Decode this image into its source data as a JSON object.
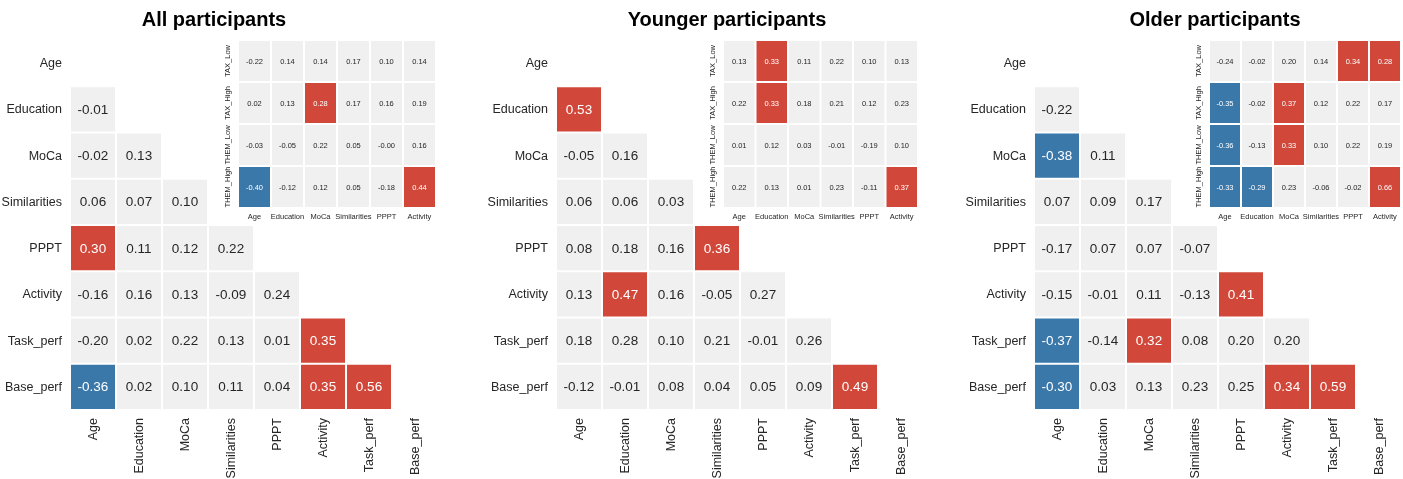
{
  "chart_data": [
    {
      "type": "heatmap",
      "title": "All participants",
      "categories": [
        "Age",
        "Education",
        "MoCa",
        "Similarities",
        "PPPT",
        "Activity",
        "Task_perf",
        "Base_perf"
      ],
      "y_categories": [
        "Age",
        "Education",
        "MoCa",
        "Similarities",
        "PPPT",
        "Activity",
        "Task_perf",
        "Base_perf"
      ],
      "cells": [
        [
          null,
          null,
          null,
          null,
          null,
          null,
          null,
          null
        ],
        [
          -0.01,
          null,
          null,
          null,
          null,
          null,
          null,
          null
        ],
        [
          -0.02,
          0.13,
          null,
          null,
          null,
          null,
          null,
          null
        ],
        [
          0.06,
          0.07,
          0.1,
          null,
          null,
          null,
          null,
          null
        ],
        [
          0.3,
          0.11,
          0.12,
          0.22,
          null,
          null,
          null,
          null
        ],
        [
          -0.16,
          0.16,
          0.13,
          -0.09,
          0.24,
          null,
          null,
          null
        ],
        [
          -0.2,
          0.02,
          0.22,
          0.13,
          0.01,
          0.35,
          null,
          null
        ],
        [
          -0.36,
          0.02,
          0.1,
          0.11,
          0.04,
          0.35,
          0.56,
          null
        ]
      ],
      "cell_labels": [
        [
          null,
          null,
          null,
          null,
          null,
          null,
          null,
          null
        ],
        [
          "-0.01",
          null,
          null,
          null,
          null,
          null,
          null,
          null
        ],
        [
          "-0.02",
          "0.13",
          null,
          null,
          null,
          null,
          null,
          null
        ],
        [
          "0.06",
          "0.07",
          "0.10",
          null,
          null,
          null,
          null,
          null
        ],
        [
          "0.30",
          "0.11",
          "0.12",
          "0.22",
          null,
          null,
          null,
          null
        ],
        [
          "-0.16",
          "0.16",
          "0.13",
          "-0.09",
          "0.24",
          null,
          null,
          null
        ],
        [
          "-0.20",
          "0.02",
          "0.22",
          "0.13",
          "0.01",
          "0.35",
          null,
          null
        ],
        [
          "-0.36",
          "0.02",
          "0.10",
          "0.11",
          "0.04",
          "0.35",
          "0.56",
          null
        ]
      ],
      "colors": [
        [
          null,
          null,
          null,
          null,
          null,
          null,
          null,
          null
        ],
        [
          "#f0f0f0",
          null,
          null,
          null,
          null,
          null,
          null,
          null
        ],
        [
          "#f0f0f0",
          "#f0f0f0",
          null,
          null,
          null,
          null,
          null,
          null
        ],
        [
          "#f0f0f0",
          "#f0f0f0",
          "#f0f0f0",
          null,
          null,
          null,
          null,
          null
        ],
        [
          "#d1483a",
          "#f0f0f0",
          "#f0f0f0",
          "#f0f0f0",
          null,
          null,
          null,
          null
        ],
        [
          "#f0f0f0",
          "#f0f0f0",
          "#f0f0f0",
          "#f0f0f0",
          "#f0f0f0",
          null,
          null,
          null
        ],
        [
          "#f0f0f0",
          "#f0f0f0",
          "#f0f0f0",
          "#f0f0f0",
          "#f0f0f0",
          "#d1483a",
          null,
          null
        ],
        [
          "#3a78aa",
          "#f0f0f0",
          "#f0f0f0",
          "#f0f0f0",
          "#f0f0f0",
          "#d1483a",
          "#d1483a",
          null
        ]
      ],
      "data_labels": true
    },
    {
      "type": "heatmap",
      "categories": [
        "Age",
        "Education",
        "MoCa",
        "Similarities",
        "PPPT",
        "Activity"
      ],
      "y_categories": [
        "TAX_Low",
        "TAX_High",
        "THEM_Low",
        "THEM_High"
      ],
      "cells": [
        [
          -0.22,
          0.14,
          0.14,
          0.17,
          0.1,
          0.14
        ],
        [
          0.02,
          0.13,
          0.28,
          0.17,
          0.16,
          0.19
        ],
        [
          -0.03,
          -0.05,
          0.22,
          0.05,
          0.0,
          0.16
        ],
        [
          -0.4,
          -0.12,
          0.12,
          0.05,
          -0.18,
          0.44
        ]
      ],
      "cell_labels": [
        [
          "-0.22",
          "0.14",
          "0.14",
          "0.17",
          "0.10",
          "0.14"
        ],
        [
          "0.02",
          "0.13",
          "0.28",
          "0.17",
          "0.16",
          "0.19"
        ],
        [
          "-0.03",
          "-0.05",
          "0.22",
          "0.05",
          "-0.00",
          "0.16"
        ],
        [
          "-0.40",
          "-0.12",
          "0.12",
          "0.05",
          "-0.18",
          "0.44"
        ]
      ],
      "colors": [
        [
          "#f0f0f0",
          "#f0f0f0",
          "#f0f0f0",
          "#f0f0f0",
          "#f0f0f0",
          "#f0f0f0"
        ],
        [
          "#f0f0f0",
          "#f0f0f0",
          "#d1483a",
          "#f0f0f0",
          "#f0f0f0",
          "#f0f0f0"
        ],
        [
          "#f0f0f0",
          "#f0f0f0",
          "#f0f0f0",
          "#f0f0f0",
          "#f0f0f0",
          "#f0f0f0"
        ],
        [
          "#3a78aa",
          "#f0f0f0",
          "#f0f0f0",
          "#f0f0f0",
          "#f0f0f0",
          "#d1483a"
        ]
      ],
      "data_labels": true
    },
    {
      "type": "heatmap",
      "title": "Younger participants",
      "categories": [
        "Age",
        "Education",
        "MoCa",
        "Similarities",
        "PPPT",
        "Activity",
        "Task_perf",
        "Base_perf"
      ],
      "y_categories": [
        "Age",
        "Education",
        "MoCa",
        "Similarities",
        "PPPT",
        "Activity",
        "Task_perf",
        "Base_perf"
      ],
      "cells": [
        [
          null,
          null,
          null,
          null,
          null,
          null,
          null,
          null
        ],
        [
          0.53,
          null,
          null,
          null,
          null,
          null,
          null,
          null
        ],
        [
          -0.05,
          0.16,
          null,
          null,
          null,
          null,
          null,
          null
        ],
        [
          0.06,
          0.06,
          0.03,
          null,
          null,
          null,
          null,
          null
        ],
        [
          0.08,
          0.18,
          0.16,
          0.36,
          null,
          null,
          null,
          null
        ],
        [
          0.13,
          0.47,
          0.16,
          -0.05,
          0.27,
          null,
          null,
          null
        ],
        [
          0.18,
          0.28,
          0.1,
          0.21,
          -0.01,
          0.26,
          null,
          null
        ],
        [
          -0.12,
          -0.01,
          0.08,
          0.04,
          0.05,
          0.09,
          0.49,
          null
        ]
      ],
      "cell_labels": [
        [
          null,
          null,
          null,
          null,
          null,
          null,
          null,
          null
        ],
        [
          "0.53",
          null,
          null,
          null,
          null,
          null,
          null,
          null
        ],
        [
          "-0.05",
          "0.16",
          null,
          null,
          null,
          null,
          null,
          null
        ],
        [
          "0.06",
          "0.06",
          "0.03",
          null,
          null,
          null,
          null,
          null
        ],
        [
          "0.08",
          "0.18",
          "0.16",
          "0.36",
          null,
          null,
          null,
          null
        ],
        [
          "0.13",
          "0.47",
          "0.16",
          "-0.05",
          "0.27",
          null,
          null,
          null
        ],
        [
          "0.18",
          "0.28",
          "0.10",
          "0.21",
          "-0.01",
          "0.26",
          null,
          null
        ],
        [
          "-0.12",
          "-0.01",
          "0.08",
          "0.04",
          "0.05",
          "0.09",
          "0.49",
          null
        ]
      ],
      "colors": [
        [
          null,
          null,
          null,
          null,
          null,
          null,
          null,
          null
        ],
        [
          "#d1483a",
          null,
          null,
          null,
          null,
          null,
          null,
          null
        ],
        [
          "#f0f0f0",
          "#f0f0f0",
          null,
          null,
          null,
          null,
          null,
          null
        ],
        [
          "#f0f0f0",
          "#f0f0f0",
          "#f0f0f0",
          null,
          null,
          null,
          null,
          null
        ],
        [
          "#f0f0f0",
          "#f0f0f0",
          "#f0f0f0",
          "#d1483a",
          null,
          null,
          null,
          null
        ],
        [
          "#f0f0f0",
          "#d1483a",
          "#f0f0f0",
          "#f0f0f0",
          "#f0f0f0",
          null,
          null,
          null
        ],
        [
          "#f0f0f0",
          "#f0f0f0",
          "#f0f0f0",
          "#f0f0f0",
          "#f0f0f0",
          "#f0f0f0",
          null,
          null
        ],
        [
          "#f0f0f0",
          "#f0f0f0",
          "#f0f0f0",
          "#f0f0f0",
          "#f0f0f0",
          "#f0f0f0",
          "#d1483a",
          null
        ]
      ],
      "data_labels": true
    },
    {
      "type": "heatmap",
      "categories": [
        "Age",
        "Education",
        "MoCa",
        "Similarities",
        "PPPT",
        "Activity"
      ],
      "y_categories": [
        "TAX_Low",
        "TAX_High",
        "THEM_Low",
        "THEM_High"
      ],
      "cells": [
        [
          0.13,
          0.33,
          0.11,
          0.22,
          0.1,
          0.13
        ],
        [
          0.22,
          0.33,
          0.18,
          0.21,
          0.12,
          0.23
        ],
        [
          0.01,
          0.12,
          0.03,
          -0.01,
          -0.19,
          0.1
        ],
        [
          0.22,
          0.13,
          0.01,
          0.23,
          -0.11,
          0.37
        ]
      ],
      "cell_labels": [
        [
          "0.13",
          "0.33",
          "0.11",
          "0.22",
          "0.10",
          "0.13"
        ],
        [
          "0.22",
          "0.33",
          "0.18",
          "0.21",
          "0.12",
          "0.23"
        ],
        [
          "0.01",
          "0.12",
          "0.03",
          "-0.01",
          "-0.19",
          "0.10"
        ],
        [
          "0.22",
          "0.13",
          "0.01",
          "0.23",
          "-0.11",
          "0.37"
        ]
      ],
      "colors": [
        [
          "#f0f0f0",
          "#d1483a",
          "#f0f0f0",
          "#f0f0f0",
          "#f0f0f0",
          "#f0f0f0"
        ],
        [
          "#f0f0f0",
          "#d1483a",
          "#f0f0f0",
          "#f0f0f0",
          "#f0f0f0",
          "#f0f0f0"
        ],
        [
          "#f0f0f0",
          "#f0f0f0",
          "#f0f0f0",
          "#f0f0f0",
          "#f0f0f0",
          "#f0f0f0"
        ],
        [
          "#f0f0f0",
          "#f0f0f0",
          "#f0f0f0",
          "#f0f0f0",
          "#f0f0f0",
          "#d1483a"
        ]
      ],
      "data_labels": true
    },
    {
      "type": "heatmap",
      "title": "Older participants",
      "categories": [
        "Age",
        "Education",
        "MoCa",
        "Similarities",
        "PPPT",
        "Activity",
        "Task_perf",
        "Base_perf"
      ],
      "y_categories": [
        "Age",
        "Education",
        "MoCa",
        "Similarities",
        "PPPT",
        "Activity",
        "Task_perf",
        "Base_perf"
      ],
      "cells": [
        [
          null,
          null,
          null,
          null,
          null,
          null,
          null,
          null
        ],
        [
          -0.22,
          null,
          null,
          null,
          null,
          null,
          null,
          null
        ],
        [
          -0.38,
          0.11,
          null,
          null,
          null,
          null,
          null,
          null
        ],
        [
          0.07,
          0.09,
          0.17,
          null,
          null,
          null,
          null,
          null
        ],
        [
          -0.17,
          0.07,
          0.07,
          -0.07,
          null,
          null,
          null,
          null
        ],
        [
          -0.15,
          -0.01,
          0.11,
          -0.13,
          0.41,
          null,
          null,
          null
        ],
        [
          -0.37,
          -0.14,
          0.32,
          0.08,
          0.2,
          0.2,
          null,
          null
        ],
        [
          -0.3,
          0.03,
          0.13,
          0.23,
          0.25,
          0.34,
          0.59,
          null
        ]
      ],
      "cell_labels": [
        [
          null,
          null,
          null,
          null,
          null,
          null,
          null,
          null
        ],
        [
          "-0.22",
          null,
          null,
          null,
          null,
          null,
          null,
          null
        ],
        [
          "-0.38",
          "0.11",
          null,
          null,
          null,
          null,
          null,
          null
        ],
        [
          "0.07",
          "0.09",
          "0.17",
          null,
          null,
          null,
          null,
          null
        ],
        [
          "-0.17",
          "0.07",
          "0.07",
          "-0.07",
          null,
          null,
          null,
          null
        ],
        [
          "-0.15",
          "-0.01",
          "0.11",
          "-0.13",
          "0.41",
          null,
          null,
          null
        ],
        [
          "-0.37",
          "-0.14",
          "0.32",
          "0.08",
          "0.20",
          "0.20",
          null,
          null
        ],
        [
          "-0.30",
          "0.03",
          "0.13",
          "0.23",
          "0.25",
          "0.34",
          "0.59",
          null
        ]
      ],
      "colors": [
        [
          null,
          null,
          null,
          null,
          null,
          null,
          null,
          null
        ],
        [
          "#f0f0f0",
          null,
          null,
          null,
          null,
          null,
          null,
          null
        ],
        [
          "#3a78aa",
          "#f0f0f0",
          null,
          null,
          null,
          null,
          null,
          null
        ],
        [
          "#f0f0f0",
          "#f0f0f0",
          "#f0f0f0",
          null,
          null,
          null,
          null,
          null
        ],
        [
          "#f0f0f0",
          "#f0f0f0",
          "#f0f0f0",
          "#f0f0f0",
          null,
          null,
          null,
          null
        ],
        [
          "#f0f0f0",
          "#f0f0f0",
          "#f0f0f0",
          "#f0f0f0",
          "#d1483a",
          null,
          null,
          null
        ],
        [
          "#3a78aa",
          "#f0f0f0",
          "#d1483a",
          "#f0f0f0",
          "#f0f0f0",
          "#f0f0f0",
          null,
          null
        ],
        [
          "#3a78aa",
          "#f0f0f0",
          "#f0f0f0",
          "#f0f0f0",
          "#f0f0f0",
          "#d1483a",
          "#d1483a",
          null
        ]
      ],
      "data_labels": true
    },
    {
      "type": "heatmap",
      "categories": [
        "Age",
        "Education",
        "MoCa",
        "Similarities",
        "PPPT",
        "Activity"
      ],
      "y_categories": [
        "TAX_Low",
        "TAX_High",
        "THEM_Low",
        "THEM_High"
      ],
      "cells": [
        [
          -0.24,
          -0.02,
          0.2,
          0.14,
          0.34,
          0.28
        ],
        [
          -0.35,
          -0.02,
          0.37,
          0.12,
          0.22,
          0.17
        ],
        [
          -0.36,
          -0.13,
          0.33,
          0.1,
          0.22,
          0.19
        ],
        [
          -0.33,
          -0.29,
          0.23,
          -0.06,
          -0.02,
          0.66
        ]
      ],
      "cell_labels": [
        [
          "-0.24",
          "-0.02",
          "0.20",
          "0.14",
          "0.34",
          "0.28"
        ],
        [
          "-0.35",
          "-0.02",
          "0.37",
          "0.12",
          "0.22",
          "0.17"
        ],
        [
          "-0.36",
          "-0.13",
          "0.33",
          "0.10",
          "0.22",
          "0.19"
        ],
        [
          "-0.33",
          "-0.29",
          "0.23",
          "-0.06",
          "-0.02",
          "0.66"
        ]
      ],
      "colors": [
        [
          "#f0f0f0",
          "#f0f0f0",
          "#f0f0f0",
          "#f0f0f0",
          "#d1483a",
          "#d1483a"
        ],
        [
          "#3a78aa",
          "#f0f0f0",
          "#d1483a",
          "#f0f0f0",
          "#f0f0f0",
          "#f0f0f0"
        ],
        [
          "#3a78aa",
          "#f0f0f0",
          "#d1483a",
          "#f0f0f0",
          "#f0f0f0",
          "#f0f0f0"
        ],
        [
          "#3a78aa",
          "#3a78aa",
          "#f0f0f0",
          "#f0f0f0",
          "#f0f0f0",
          "#d1483a"
        ]
      ],
      "data_labels": true
    }
  ]
}
